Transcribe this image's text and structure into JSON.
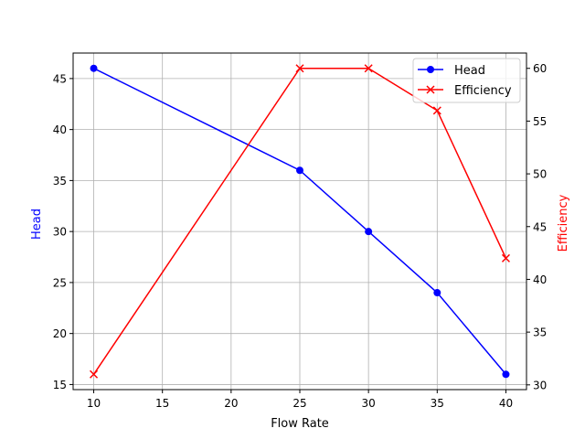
{
  "chart_data": {
    "type": "line",
    "title": "",
    "xlabel": "Flow Rate",
    "ylabel": "Head",
    "ylabel_right": "Efficiency",
    "x": [
      10,
      25,
      30,
      35,
      40
    ],
    "xlim": [
      8.5,
      41.5
    ],
    "ylim": [
      14.5,
      47.5
    ],
    "ylim_right": [
      29.55,
      61.45
    ],
    "xticks": [
      10,
      15,
      20,
      25,
      30,
      35,
      40
    ],
    "yticks": [
      15,
      20,
      25,
      30,
      35,
      40,
      45
    ],
    "yticks_right": [
      30,
      35,
      40,
      45,
      50,
      55,
      60
    ],
    "grid": true,
    "legend_position": "upper right",
    "series": [
      {
        "name": "Head",
        "axis": "left",
        "color": "#0000ff",
        "marker": "circle",
        "values": [
          46,
          36,
          30,
          24,
          16
        ]
      },
      {
        "name": "Efficiency",
        "axis": "right",
        "color": "#ff0000",
        "marker": "x",
        "values": [
          31,
          60,
          60,
          56,
          42
        ]
      }
    ]
  }
}
